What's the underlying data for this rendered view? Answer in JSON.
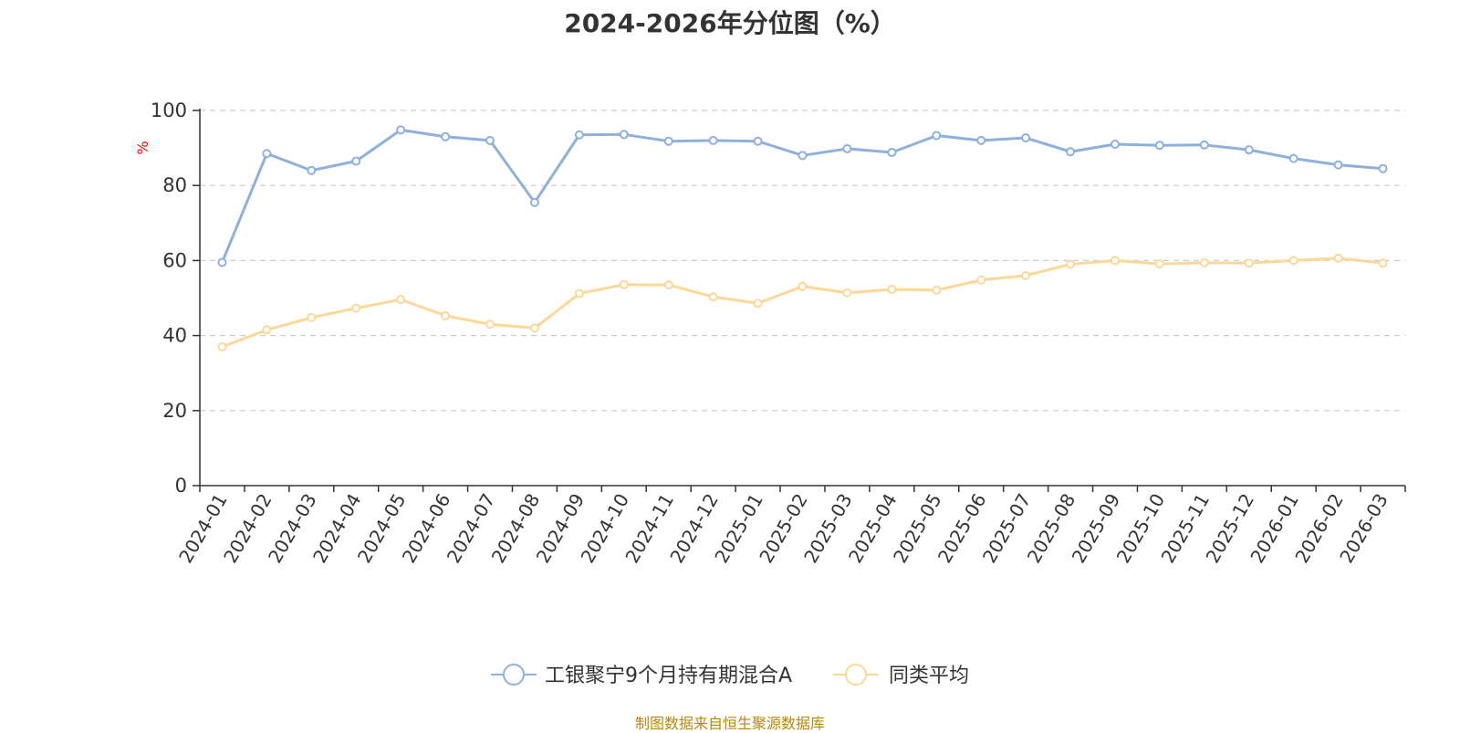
{
  "chart_data": {
    "type": "line",
    "title": "2024-2026年分位图（%）",
    "ylabel": "%",
    "ylim": [
      0,
      100
    ],
    "yticks": [
      0,
      20,
      40,
      60,
      80,
      100
    ],
    "grid": true,
    "legend_position": "bottom-center",
    "categories": [
      "2024-01",
      "2024-02",
      "2024-03",
      "2024-04",
      "2024-05",
      "2024-06",
      "2024-07",
      "2024-08",
      "2024-09",
      "2024-10",
      "2024-11",
      "2024-12",
      "2025-01",
      "2025-02",
      "2025-03",
      "2025-04",
      "2025-05",
      "2025-06",
      "2025-07",
      "2025-08",
      "2025-09",
      "2025-10",
      "2025-11",
      "2025-12",
      "2026-01",
      "2026-02",
      "2026-03"
    ],
    "series": [
      {
        "name": "工银聚宁9个月持有期混合A",
        "color": "#8eb0dc",
        "values": [
          59.5,
          88.5,
          84,
          86.5,
          94.8,
          93,
          92,
          75.5,
          93.5,
          93.6,
          91.8,
          92,
          91.8,
          88,
          89.8,
          88.8,
          93.3,
          92,
          92.7,
          89,
          91,
          90.7,
          90.8,
          89.5,
          87.2,
          85.5,
          84.5
        ]
      },
      {
        "name": "同类平均",
        "color": "#fcd898",
        "values": [
          37,
          41.5,
          44.8,
          47.3,
          49.6,
          45.3,
          43,
          42,
          51.2,
          53.6,
          53.5,
          50.3,
          48.6,
          53.1,
          51.4,
          52.3,
          52.1,
          54.8,
          56,
          59,
          60,
          59.1,
          59.4,
          59.3,
          60,
          60.6,
          59.3
        ]
      }
    ]
  },
  "footer": {
    "source": "制图数据来自恒生聚源数据库"
  }
}
